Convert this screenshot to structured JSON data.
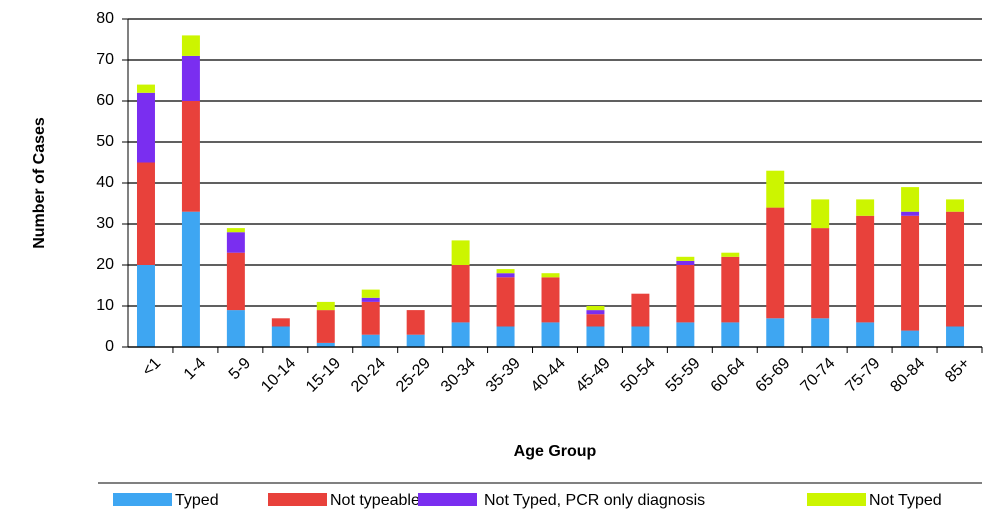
{
  "chart_data": {
    "type": "stacked_bar",
    "x_label": "Age Group",
    "y_label": "Number of Cases",
    "categories": [
      "<1",
      "1-4",
      "5-9",
      "10-14",
      "15-19",
      "20-24",
      "25-29",
      "30-34",
      "35-39",
      "40-44",
      "45-49",
      "50-54",
      "55-59",
      "60-64",
      "65-69",
      "70-74",
      "75-79",
      "80-84",
      "85+"
    ],
    "series": [
      {
        "name": "Typed",
        "color": "#3ea6f2",
        "values": [
          20,
          33,
          9,
          5,
          1,
          3,
          3,
          6,
          5,
          6,
          5,
          5,
          6,
          6,
          7,
          7,
          6,
          4,
          5
        ]
      },
      {
        "name": "Not typeable",
        "color": "#e8413b",
        "values": [
          25,
          27,
          14,
          2,
          8,
          8,
          6,
          14,
          12,
          11,
          3,
          8,
          14,
          16,
          27,
          22,
          26,
          28,
          28
        ]
      },
      {
        "name": "Not Typed, PCR only diagnosis",
        "color": "#7a2ef0",
        "values": [
          17,
          11,
          5,
          0,
          0,
          1,
          0,
          0,
          1,
          0,
          1,
          0,
          1,
          0,
          0,
          0,
          0,
          1,
          0
        ]
      },
      {
        "name": "Not Typed",
        "color": "#ccf500",
        "values": [
          2,
          5,
          1,
          0,
          2,
          2,
          0,
          6,
          1,
          1,
          1,
          0,
          1,
          1,
          9,
          7,
          4,
          6,
          3
        ]
      }
    ],
    "ylim": [
      0,
      80
    ],
    "yticks": [
      0,
      10,
      20,
      30,
      40,
      50,
      60,
      70,
      80
    ],
    "grid": true,
    "legend": "bottom"
  }
}
